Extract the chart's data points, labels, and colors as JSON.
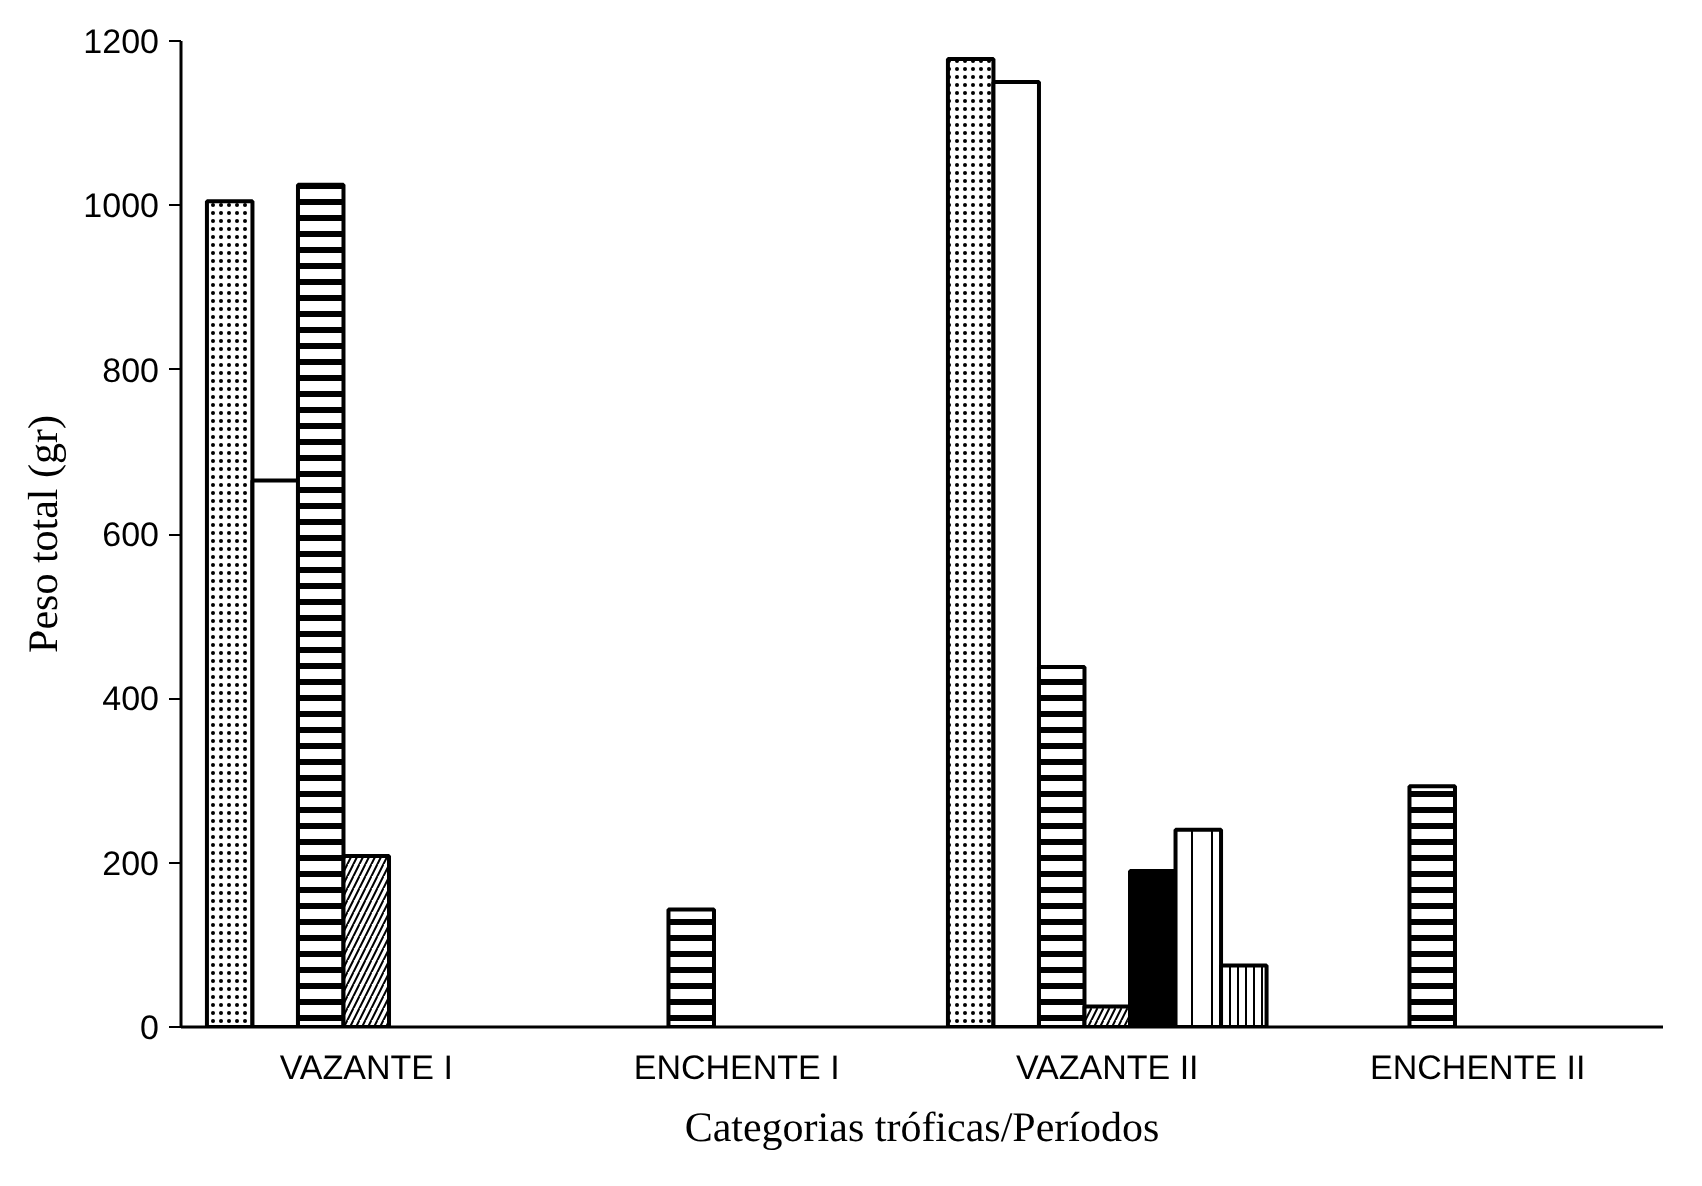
{
  "chart_data": {
    "type": "bar",
    "xlabel": "Categorias tróficas/Períodos",
    "ylabel": "Peso total (gr)",
    "categories": [
      "VAZANTE I",
      "ENCHENTE I",
      "VAZANTE II",
      "ENCHENTE II"
    ],
    "series": [
      {
        "color": "#ffffff",
        "values": [
          1005,
          null,
          1178,
          null
        ]
      },
      {
        "color": "#ffffff",
        "values": [
          665,
          null,
          1150,
          null
        ]
      },
      {
        "color": "#ffffff",
        "values": [
          1025,
          143,
          438,
          293
        ]
      },
      {
        "color": "#ffffff",
        "values": [
          208,
          null,
          25,
          null
        ]
      },
      {
        "color": "#000000",
        "values": [
          null,
          null,
          190,
          null
        ]
      },
      {
        "color": "#ffffff",
        "values": [
          null,
          null,
          240,
          null
        ]
      },
      {
        "color": "#ffffff",
        "values": [
          null,
          null,
          75,
          null
        ]
      }
    ],
    "ylim": [
      0,
      1200
    ],
    "yticks": [
      0,
      200,
      400,
      600,
      800,
      1000,
      1200
    ]
  }
}
